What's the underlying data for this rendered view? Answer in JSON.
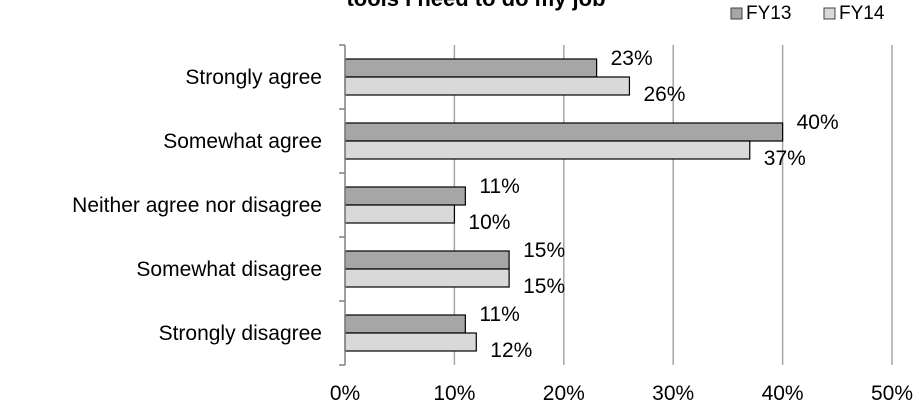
{
  "chart_data": {
    "type": "bar",
    "orientation": "horizontal",
    "title": "tools I need to do my job",
    "categories": [
      "Strongly agree",
      "Somewhat agree",
      "Neither agree nor disagree",
      "Somewhat disagree",
      "Strongly disagree"
    ],
    "series": [
      {
        "name": "FY13",
        "values": [
          23,
          40,
          11,
          15,
          11
        ],
        "labels": [
          "23%",
          "40%",
          "11%",
          "15%",
          "11%"
        ],
        "color": "#a6a6a6"
      },
      {
        "name": "FY14",
        "values": [
          26,
          37,
          10,
          15,
          12
        ],
        "labels": [
          "26%",
          "37%",
          "10%",
          "15%",
          "12%"
        ],
        "color": "#d9d9d9"
      }
    ],
    "xlim": [
      0,
      50
    ],
    "xticks": [
      "0%",
      "10%",
      "20%",
      "30%",
      "40%",
      "50%"
    ],
    "grid": "vertical",
    "legend": "top-right"
  }
}
